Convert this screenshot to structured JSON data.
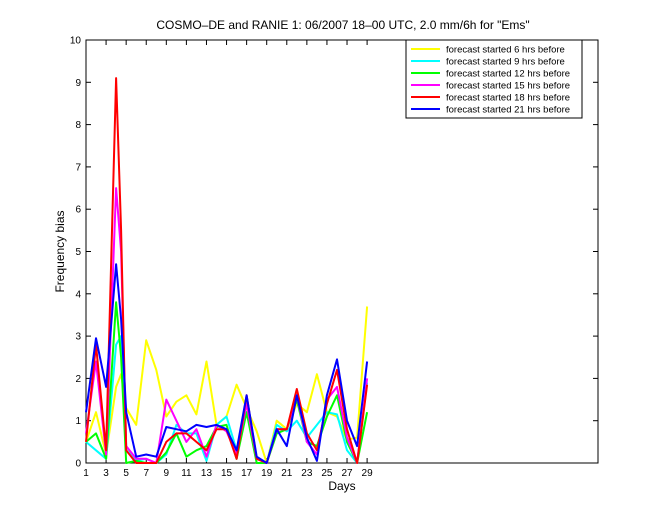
{
  "chart_data": {
    "type": "line",
    "title": "COSMO–DE and RANIE 1: 06/2007 18–00 UTC, 2.0 mm/6h for \"Ems\"",
    "xlabel": "Days",
    "ylabel": "Frequency bias",
    "xlim": [
      1,
      52
    ],
    "ylim": [
      0,
      10
    ],
    "xticks": [
      "1",
      "3",
      "5",
      "7",
      "9",
      "11",
      "13",
      "15",
      "17",
      "19",
      "21",
      "23",
      "25",
      "27",
      "29"
    ],
    "yticks": [
      "0",
      "1",
      "2",
      "3",
      "4",
      "5",
      "6",
      "7",
      "8",
      "9",
      "10"
    ],
    "grid": false,
    "legend_position": "top-right",
    "x": [
      1,
      2,
      3,
      4,
      4.5,
      5,
      6,
      7,
      8,
      9,
      10,
      11,
      12,
      13,
      14,
      15,
      16,
      17,
      18,
      19,
      20,
      21,
      22,
      23,
      24,
      25,
      26,
      27,
      28,
      29
    ],
    "series": [
      {
        "name": "forecast started 6 hrs before",
        "color": "#ffff00",
        "values": [
          0.5,
          1.2,
          0.2,
          1.8,
          2.1,
          1.3,
          0.9,
          2.9,
          2.2,
          1.1,
          1.45,
          1.6,
          1.15,
          2.4,
          0.9,
          1.1,
          1.85,
          1.3,
          0.75,
          0.0,
          1.0,
          0.8,
          1.4,
          1.2,
          2.1,
          1.2,
          1.1,
          0.55,
          0.6,
          3.7
        ]
      },
      {
        "name": "forecast started 9 hrs before",
        "color": "#00ffff",
        "values": [
          0.5,
          0.3,
          0.1,
          2.8,
          3.0,
          0.4,
          0.05,
          0.1,
          0.0,
          0.2,
          0.9,
          0.7,
          0.7,
          0.05,
          0.9,
          1.1,
          0.3,
          1.2,
          0.1,
          0.0,
          0.9,
          0.75,
          1.0,
          0.6,
          0.9,
          1.2,
          1.15,
          0.3,
          0.0,
          1.9
        ]
      },
      {
        "name": "forecast started 12 hrs before",
        "color": "#00ff00",
        "values": [
          0.5,
          0.7,
          0.1,
          3.8,
          2.5,
          0.0,
          0.05,
          0.0,
          0.0,
          0.25,
          0.7,
          0.15,
          0.3,
          0.4,
          0.85,
          0.9,
          0.1,
          1.2,
          0.0,
          0.0,
          0.7,
          0.8,
          1.5,
          0.5,
          0.4,
          1.1,
          1.6,
          0.5,
          0.0,
          1.2
        ]
      },
      {
        "name": "forecast started 15 hrs before",
        "color": "#ff00ff",
        "values": [
          0.7,
          2.4,
          0.2,
          6.5,
          5.0,
          0.4,
          0.1,
          0.1,
          0.0,
          1.5,
          1.0,
          0.5,
          0.8,
          0.15,
          0.9,
          0.75,
          0.2,
          1.4,
          0.1,
          0.0,
          0.8,
          0.8,
          1.6,
          0.5,
          0.2,
          1.5,
          1.8,
          0.6,
          0.0,
          2.0
        ]
      },
      {
        "name": "forecast started 18 hrs before",
        "color": "#ff0000",
        "values": [
          0.5,
          2.8,
          0.3,
          9.1,
          5.5,
          0.3,
          0.0,
          0.0,
          0.0,
          0.5,
          0.7,
          0.7,
          0.5,
          0.3,
          0.8,
          0.8,
          0.1,
          1.6,
          0.1,
          0.0,
          0.8,
          0.8,
          1.75,
          0.7,
          0.3,
          1.4,
          2.2,
          0.8,
          0.0,
          1.85
        ]
      },
      {
        "name": "forecast started 21 hrs before",
        "color": "#0000ff",
        "values": [
          1.2,
          2.95,
          1.8,
          4.7,
          3.4,
          1.2,
          0.15,
          0.2,
          0.15,
          0.85,
          0.8,
          0.75,
          0.9,
          0.85,
          0.9,
          0.8,
          0.3,
          1.6,
          0.15,
          0.0,
          0.8,
          0.4,
          1.6,
          0.6,
          0.05,
          1.6,
          2.45,
          1.0,
          0.4,
          2.4
        ]
      }
    ]
  }
}
